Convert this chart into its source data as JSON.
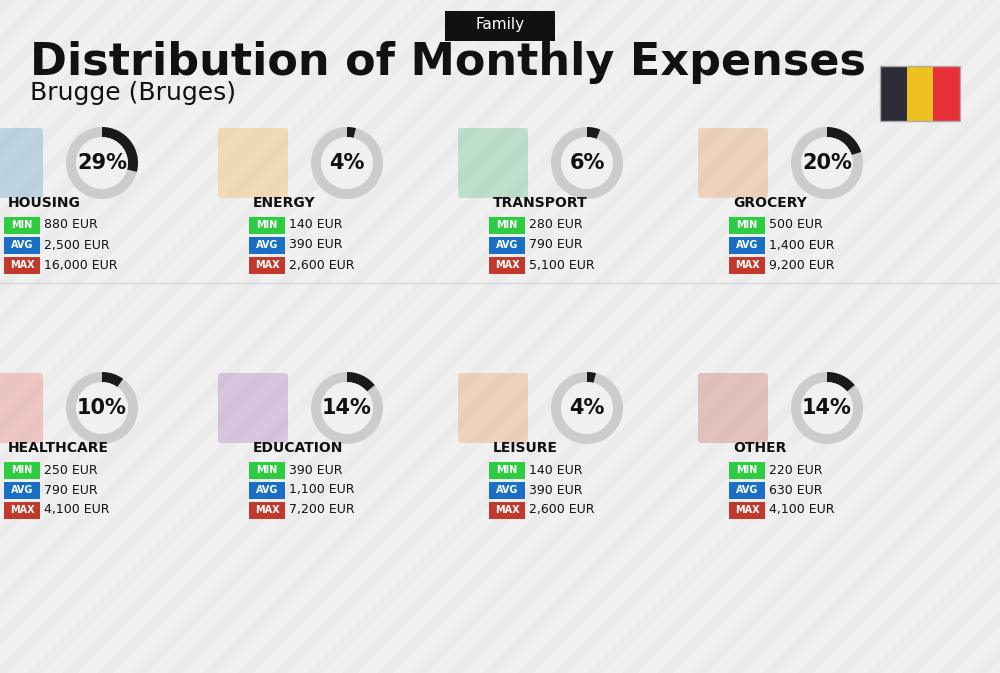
{
  "title": "Distribution of Monthly Expenses",
  "subtitle": "Brugge (Bruges)",
  "tag": "Family",
  "bg_color": "#f0f0f0",
  "categories": [
    {
      "name": "HOUSING",
      "pct": 29,
      "min": "880 EUR",
      "avg": "2,500 EUR",
      "max": "16,000 EUR",
      "row": 0,
      "col": 0
    },
    {
      "name": "ENERGY",
      "pct": 4,
      "min": "140 EUR",
      "avg": "390 EUR",
      "max": "2,600 EUR",
      "row": 0,
      "col": 1
    },
    {
      "name": "TRANSPORT",
      "pct": 6,
      "min": "280 EUR",
      "avg": "790 EUR",
      "max": "5,100 EUR",
      "row": 0,
      "col": 2
    },
    {
      "name": "GROCERY",
      "pct": 20,
      "min": "500 EUR",
      "avg": "1,400 EUR",
      "max": "9,200 EUR",
      "row": 0,
      "col": 3
    },
    {
      "name": "HEALTHCARE",
      "pct": 10,
      "min": "250 EUR",
      "avg": "790 EUR",
      "max": "4,100 EUR",
      "row": 1,
      "col": 0
    },
    {
      "name": "EDUCATION",
      "pct": 14,
      "min": "390 EUR",
      "avg": "1,100 EUR",
      "max": "7,200 EUR",
      "row": 1,
      "col": 1
    },
    {
      "name": "LEISURE",
      "pct": 4,
      "min": "140 EUR",
      "avg": "390 EUR",
      "max": "2,600 EUR",
      "row": 1,
      "col": 2
    },
    {
      "name": "OTHER",
      "pct": 14,
      "min": "220 EUR",
      "avg": "630 EUR",
      "max": "4,100 EUR",
      "row": 1,
      "col": 3
    }
  ],
  "color_min": "#2ecc40",
  "color_avg": "#1a6fc4",
  "color_max": "#c0392b",
  "color_label_text": "#ffffff",
  "belgium_colors": [
    "#2d2d3a",
    "#f0c020",
    "#e8303a"
  ],
  "donut_active_color": "#1a1a1a",
  "donut_inactive_color": "#cccccc"
}
